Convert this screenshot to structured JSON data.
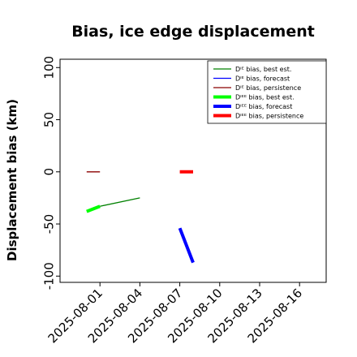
{
  "chart_data": {
    "type": "line",
    "title": "Bias, ice edge displacement",
    "xlabel": "",
    "ylabel": "Displacement bias (km)",
    "xlim": [
      "2025-07-29",
      "2025-08-18"
    ],
    "ylim": [
      -106,
      108
    ],
    "xticks": [
      {
        "value": "2025-08-01",
        "label": "2025-08-01",
        "color": "#000000"
      },
      {
        "value": "2025-08-04",
        "label": "2025-08-04",
        "color": "#000000"
      },
      {
        "value": "2025-08-07",
        "label": "2025-08-07",
        "color": "#2e8b2e"
      },
      {
        "value": "2025-08-10",
        "label": "2025-08-10",
        "color": "#000000"
      },
      {
        "value": "2025-08-13",
        "label": "2025-08-13",
        "color": "#000000"
      },
      {
        "value": "2025-08-16",
        "label": "2025-08-16",
        "color": "#000000"
      }
    ],
    "yticks": [
      -100,
      -50,
      0,
      50,
      100
    ],
    "grid": false,
    "legend_position": "top-right",
    "series": [
      {
        "name": "Dᴵᴱ bias, best est.",
        "color": "#008000",
        "width": 1.3,
        "points": [
          {
            "x": "2025-08-01",
            "y": -33
          },
          {
            "x": "2025-08-04",
            "y": -25
          }
        ]
      },
      {
        "name": "Dᴵᴱ bias, forecast",
        "color": "#0000ff",
        "width": 1.3,
        "points": []
      },
      {
        "name": "Dᴵᴱ bias, persistence",
        "color": "#8b0000",
        "width": 1.3,
        "points": [
          {
            "x": "2025-07-31",
            "y": 0
          },
          {
            "x": "2025-08-01",
            "y": 0
          }
        ]
      },
      {
        "name": "Dᴵᴱᴱ bias, best est.",
        "color": "#00ff00",
        "width": 4,
        "points": [
          {
            "x": "2025-07-31",
            "y": -38
          },
          {
            "x": "2025-08-01",
            "y": -33
          }
        ]
      },
      {
        "name": "Dᴵᴱᴱ bias, forecast",
        "color": "#0000ff",
        "width": 4,
        "points": [
          {
            "x": "2025-08-07",
            "y": -54
          },
          {
            "x": "2025-08-08",
            "y": -87
          }
        ]
      },
      {
        "name": "Dᴵᴱᴱ bias, persistence",
        "color": "#ff0000",
        "width": 4,
        "points": [
          {
            "x": "2025-08-07",
            "y": 0
          },
          {
            "x": "2025-08-08",
            "y": 0
          }
        ]
      }
    ]
  }
}
